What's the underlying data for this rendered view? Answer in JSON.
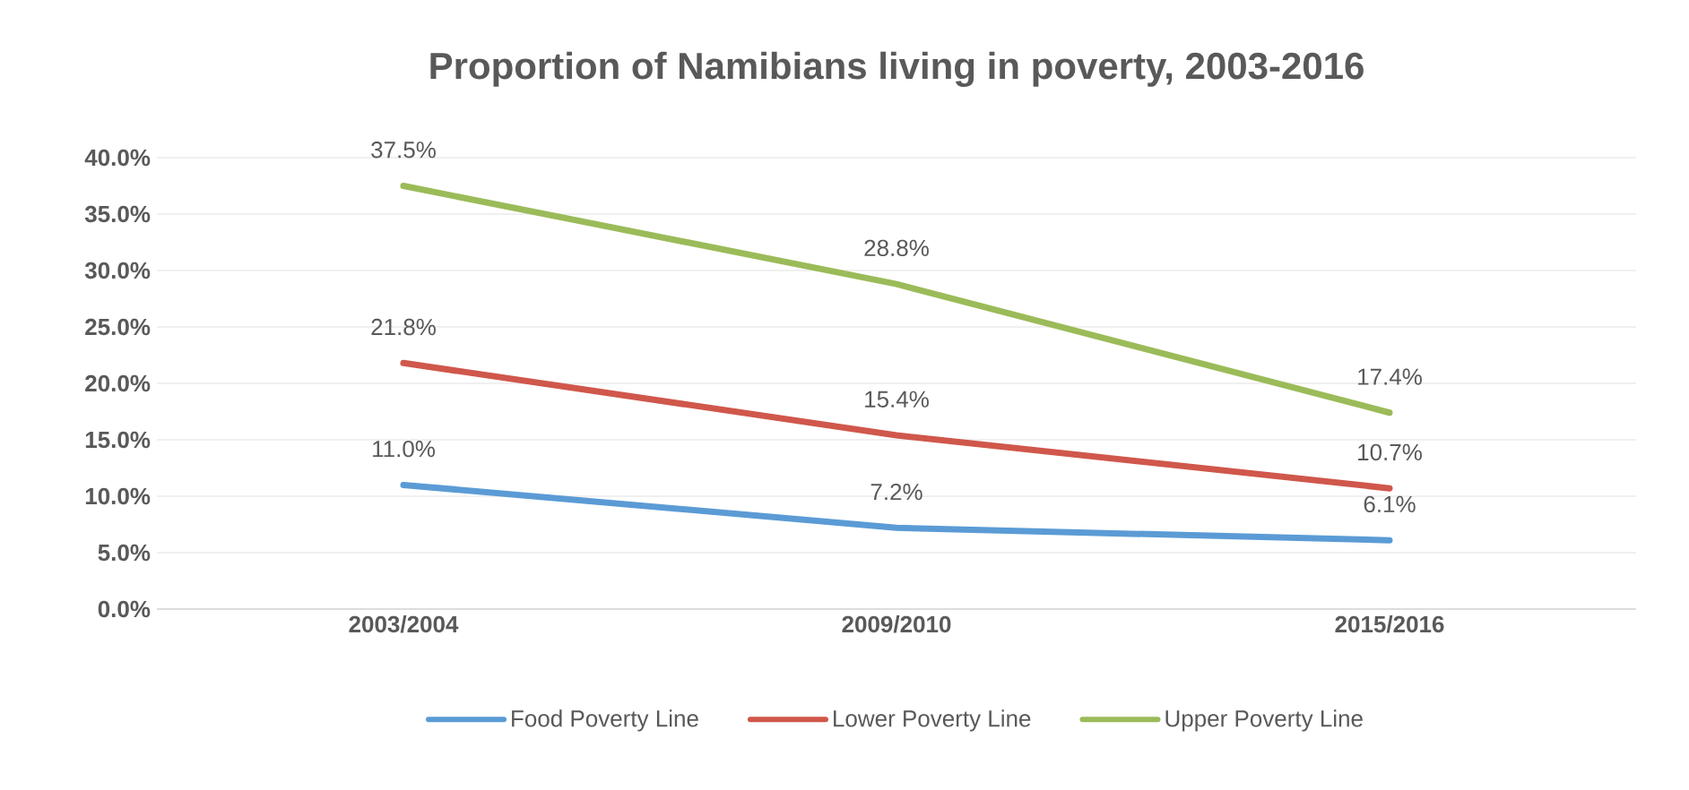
{
  "chart_data": {
    "type": "line",
    "title": "Proportion of Namibians living in poverty, 2003-2016",
    "categories": [
      "2003/2004",
      "2009/2010",
      "2015/2016"
    ],
    "series": [
      {
        "name": "Food Poverty Line",
        "color": "#5b9bd5",
        "values": [
          11.0,
          7.2,
          6.1
        ],
        "value_labels": [
          "11.0%",
          "7.2%",
          "6.1%"
        ]
      },
      {
        "name": "Lower Poverty Line",
        "color": "#d0574b",
        "values": [
          21.8,
          15.4,
          10.7
        ],
        "value_labels": [
          "21.8%",
          "15.4%",
          "10.7%"
        ]
      },
      {
        "name": "Upper Poverty Line",
        "color": "#9bbb59",
        "values": [
          37.5,
          28.8,
          17.4
        ],
        "value_labels": [
          "37.5%",
          "28.8%",
          "17.4%"
        ]
      }
    ],
    "ylim": [
      0,
      40
    ],
    "yticks": [
      {
        "value": 0,
        "label": "0.0%"
      },
      {
        "value": 5,
        "label": "5.0%"
      },
      {
        "value": 10,
        "label": "10.0%"
      },
      {
        "value": 15,
        "label": "15.0%"
      },
      {
        "value": 20,
        "label": "20.0%"
      },
      {
        "value": 25,
        "label": "25.0%"
      },
      {
        "value": 30,
        "label": "30.0%"
      },
      {
        "value": 35,
        "label": "35.0%"
      },
      {
        "value": 40,
        "label": "40.0%"
      }
    ],
    "grid": "y",
    "legend": "bottom",
    "line_style": "solid"
  }
}
